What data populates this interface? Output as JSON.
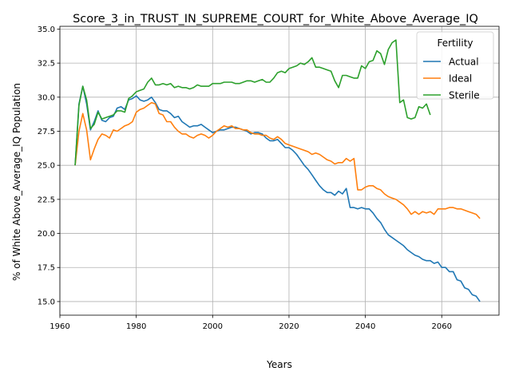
{
  "chart_data": {
    "type": "line",
    "title": "Score_3_in_TRUST_IN_SUPREME_COURT_for_White_Above_Average_IQ",
    "xlabel": "Years",
    "ylabel": "% of White Above_Average_IQ Population",
    "xlim": [
      1960,
      2075
    ],
    "ylim": [
      14.0,
      35.2
    ],
    "xticks": [
      1960,
      1980,
      2000,
      2020,
      2040,
      2060
    ],
    "yticks": [
      15.0,
      17.5,
      20.0,
      22.5,
      25.0,
      27.5,
      30.0,
      32.5,
      35.0
    ],
    "xtick_labels": [
      "1960",
      "1980",
      "2000",
      "2020",
      "2040",
      "2060"
    ],
    "ytick_labels": [
      "15.0",
      "17.5",
      "20.0",
      "22.5",
      "25.0",
      "27.5",
      "30.0",
      "32.5",
      "35.0"
    ],
    "grid": true,
    "legend": {
      "title": "Fertility",
      "placement": "top-right"
    },
    "series": [
      {
        "name": "Actual",
        "color": "#1f77b4",
        "points": [
          [
            1964,
            25.0
          ],
          [
            1965,
            29.5
          ],
          [
            1966,
            30.8
          ],
          [
            1967,
            29.5
          ],
          [
            1968,
            27.6
          ],
          [
            1969,
            28.2
          ],
          [
            1970,
            29.0
          ],
          [
            1971,
            28.3
          ],
          [
            1972,
            28.2
          ],
          [
            1973,
            28.5
          ],
          [
            1974,
            28.6
          ],
          [
            1975,
            29.2
          ],
          [
            1976,
            29.3
          ],
          [
            1977,
            29.1
          ],
          [
            1978,
            29.8
          ],
          [
            1979,
            29.9
          ],
          [
            1980,
            30.1
          ],
          [
            1981,
            29.8
          ],
          [
            1982,
            29.7
          ],
          [
            1983,
            29.8
          ],
          [
            1984,
            30.0
          ],
          [
            1985,
            29.6
          ],
          [
            1986,
            29.1
          ],
          [
            1987,
            29.0
          ],
          [
            1988,
            29.0
          ],
          [
            1989,
            28.8
          ],
          [
            1990,
            28.5
          ],
          [
            1991,
            28.6
          ],
          [
            1992,
            28.2
          ],
          [
            1993,
            28.0
          ],
          [
            1994,
            27.8
          ],
          [
            1995,
            27.9
          ],
          [
            1996,
            27.9
          ],
          [
            1997,
            28.0
          ],
          [
            1998,
            27.8
          ],
          [
            1999,
            27.6
          ],
          [
            2000,
            27.4
          ],
          [
            2001,
            27.5
          ],
          [
            2002,
            27.6
          ],
          [
            2003,
            27.6
          ],
          [
            2004,
            27.7
          ],
          [
            2005,
            27.8
          ],
          [
            2006,
            27.8
          ],
          [
            2007,
            27.7
          ],
          [
            2008,
            27.6
          ],
          [
            2009,
            27.5
          ],
          [
            2010,
            27.3
          ],
          [
            2011,
            27.4
          ],
          [
            2012,
            27.4
          ],
          [
            2013,
            27.3
          ],
          [
            2014,
            27.0
          ],
          [
            2015,
            26.8
          ],
          [
            2016,
            26.8
          ],
          [
            2017,
            26.9
          ],
          [
            2018,
            26.6
          ],
          [
            2019,
            26.3
          ],
          [
            2020,
            26.3
          ],
          [
            2021,
            26.1
          ],
          [
            2022,
            25.8
          ],
          [
            2023,
            25.4
          ],
          [
            2024,
            25.0
          ],
          [
            2025,
            24.7
          ],
          [
            2026,
            24.3
          ],
          [
            2027,
            23.9
          ],
          [
            2028,
            23.5
          ],
          [
            2029,
            23.2
          ],
          [
            2030,
            23.0
          ],
          [
            2031,
            23.0
          ],
          [
            2032,
            22.8
          ],
          [
            2033,
            23.1
          ],
          [
            2034,
            22.9
          ],
          [
            2035,
            23.3
          ],
          [
            2036,
            21.9
          ],
          [
            2037,
            21.9
          ],
          [
            2038,
            21.8
          ],
          [
            2039,
            21.9
          ],
          [
            2040,
            21.8
          ],
          [
            2041,
            21.8
          ],
          [
            2042,
            21.5
          ],
          [
            2043,
            21.1
          ],
          [
            2044,
            20.8
          ],
          [
            2045,
            20.3
          ],
          [
            2046,
            19.9
          ],
          [
            2047,
            19.7
          ],
          [
            2048,
            19.5
          ],
          [
            2049,
            19.3
          ],
          [
            2050,
            19.1
          ],
          [
            2051,
            18.8
          ],
          [
            2052,
            18.6
          ],
          [
            2053,
            18.4
          ],
          [
            2054,
            18.3
          ],
          [
            2055,
            18.1
          ],
          [
            2056,
            18.0
          ],
          [
            2057,
            18.0
          ],
          [
            2058,
            17.8
          ],
          [
            2059,
            17.9
          ],
          [
            2060,
            17.5
          ],
          [
            2061,
            17.5
          ],
          [
            2062,
            17.2
          ],
          [
            2063,
            17.2
          ],
          [
            2064,
            16.6
          ],
          [
            2065,
            16.5
          ],
          [
            2066,
            16.0
          ],
          [
            2067,
            15.9
          ],
          [
            2068,
            15.5
          ],
          [
            2069,
            15.4
          ],
          [
            2070,
            15.0
          ]
        ]
      },
      {
        "name": "Ideal",
        "color": "#ff7f0e",
        "points": [
          [
            1964,
            25.0
          ],
          [
            1965,
            27.5
          ],
          [
            1966,
            28.8
          ],
          [
            1967,
            27.6
          ],
          [
            1968,
            25.4
          ],
          [
            1969,
            26.2
          ],
          [
            1970,
            26.9
          ],
          [
            1971,
            27.3
          ],
          [
            1972,
            27.2
          ],
          [
            1973,
            27.0
          ],
          [
            1974,
            27.6
          ],
          [
            1975,
            27.5
          ],
          [
            1976,
            27.7
          ],
          [
            1977,
            27.9
          ],
          [
            1978,
            28.0
          ],
          [
            1979,
            28.2
          ],
          [
            1980,
            28.9
          ],
          [
            1981,
            29.1
          ],
          [
            1982,
            29.2
          ],
          [
            1983,
            29.4
          ],
          [
            1984,
            29.6
          ],
          [
            1985,
            29.5
          ],
          [
            1986,
            28.8
          ],
          [
            1987,
            28.7
          ],
          [
            1988,
            28.2
          ],
          [
            1989,
            28.2
          ],
          [
            1990,
            27.8
          ],
          [
            1991,
            27.5
          ],
          [
            1992,
            27.3
          ],
          [
            1993,
            27.3
          ],
          [
            1994,
            27.1
          ],
          [
            1995,
            27.0
          ],
          [
            1996,
            27.2
          ],
          [
            1997,
            27.3
          ],
          [
            1998,
            27.2
          ],
          [
            1999,
            27.0
          ],
          [
            2000,
            27.2
          ],
          [
            2001,
            27.5
          ],
          [
            2002,
            27.7
          ],
          [
            2003,
            27.9
          ],
          [
            2004,
            27.8
          ],
          [
            2005,
            27.9
          ],
          [
            2006,
            27.7
          ],
          [
            2007,
            27.7
          ],
          [
            2008,
            27.6
          ],
          [
            2009,
            27.6
          ],
          [
            2010,
            27.4
          ],
          [
            2011,
            27.3
          ],
          [
            2012,
            27.3
          ],
          [
            2013,
            27.2
          ],
          [
            2014,
            27.2
          ],
          [
            2015,
            27.0
          ],
          [
            2016,
            26.9
          ],
          [
            2017,
            27.1
          ],
          [
            2018,
            26.9
          ],
          [
            2019,
            26.6
          ],
          [
            2020,
            26.5
          ],
          [
            2021,
            26.4
          ],
          [
            2022,
            26.3
          ],
          [
            2023,
            26.2
          ],
          [
            2024,
            26.1
          ],
          [
            2025,
            26.0
          ],
          [
            2026,
            25.8
          ],
          [
            2027,
            25.9
          ],
          [
            2028,
            25.8
          ],
          [
            2029,
            25.6
          ],
          [
            2030,
            25.4
          ],
          [
            2031,
            25.3
          ],
          [
            2032,
            25.1
          ],
          [
            2033,
            25.2
          ],
          [
            2034,
            25.2
          ],
          [
            2035,
            25.5
          ],
          [
            2036,
            25.3
          ],
          [
            2037,
            25.5
          ],
          [
            2038,
            23.2
          ],
          [
            2039,
            23.2
          ],
          [
            2040,
            23.4
          ],
          [
            2041,
            23.5
          ],
          [
            2042,
            23.5
          ],
          [
            2043,
            23.3
          ],
          [
            2044,
            23.2
          ],
          [
            2045,
            22.9
          ],
          [
            2046,
            22.7
          ],
          [
            2047,
            22.6
          ],
          [
            2048,
            22.5
          ],
          [
            2049,
            22.3
          ],
          [
            2050,
            22.1
          ],
          [
            2051,
            21.8
          ],
          [
            2052,
            21.4
          ],
          [
            2053,
            21.6
          ],
          [
            2054,
            21.4
          ],
          [
            2055,
            21.6
          ],
          [
            2056,
            21.5
          ],
          [
            2057,
            21.6
          ],
          [
            2058,
            21.4
          ],
          [
            2059,
            21.8
          ],
          [
            2060,
            21.8
          ],
          [
            2061,
            21.8
          ],
          [
            2062,
            21.9
          ],
          [
            2063,
            21.9
          ],
          [
            2064,
            21.8
          ],
          [
            2065,
            21.8
          ],
          [
            2066,
            21.7
          ],
          [
            2067,
            21.6
          ],
          [
            2068,
            21.5
          ],
          [
            2069,
            21.4
          ],
          [
            2070,
            21.1
          ]
        ]
      },
      {
        "name": "Sterile",
        "color": "#2ca02c",
        "points": [
          [
            1964,
            25.0
          ],
          [
            1965,
            29.4
          ],
          [
            1966,
            30.8
          ],
          [
            1967,
            29.8
          ],
          [
            1968,
            27.7
          ],
          [
            1969,
            28.0
          ],
          [
            1970,
            28.9
          ],
          [
            1971,
            28.4
          ],
          [
            1972,
            28.5
          ],
          [
            1973,
            28.6
          ],
          [
            1974,
            28.7
          ],
          [
            1975,
            29.0
          ],
          [
            1976,
            29.0
          ],
          [
            1977,
            28.9
          ],
          [
            1978,
            29.9
          ],
          [
            1979,
            30.1
          ],
          [
            1980,
            30.4
          ],
          [
            1981,
            30.5
          ],
          [
            1982,
            30.6
          ],
          [
            1983,
            31.1
          ],
          [
            1984,
            31.4
          ],
          [
            1985,
            30.9
          ],
          [
            1986,
            30.9
          ],
          [
            1987,
            31.0
          ],
          [
            1988,
            30.9
          ],
          [
            1989,
            31.0
          ],
          [
            1990,
            30.7
          ],
          [
            1991,
            30.8
          ],
          [
            1992,
            30.7
          ],
          [
            1993,
            30.7
          ],
          [
            1994,
            30.6
          ],
          [
            1995,
            30.7
          ],
          [
            1996,
            30.9
          ],
          [
            1997,
            30.8
          ],
          [
            1998,
            30.8
          ],
          [
            1999,
            30.8
          ],
          [
            2000,
            31.0
          ],
          [
            2001,
            31.0
          ],
          [
            2002,
            31.0
          ],
          [
            2003,
            31.1
          ],
          [
            2004,
            31.1
          ],
          [
            2005,
            31.1
          ],
          [
            2006,
            31.0
          ],
          [
            2007,
            31.0
          ],
          [
            2008,
            31.1
          ],
          [
            2009,
            31.2
          ],
          [
            2010,
            31.2
          ],
          [
            2011,
            31.1
          ],
          [
            2012,
            31.2
          ],
          [
            2013,
            31.3
          ],
          [
            2014,
            31.1
          ],
          [
            2015,
            31.1
          ],
          [
            2016,
            31.4
          ],
          [
            2017,
            31.8
          ],
          [
            2018,
            31.9
          ],
          [
            2019,
            31.8
          ],
          [
            2020,
            32.1
          ],
          [
            2021,
            32.2
          ],
          [
            2022,
            32.3
          ],
          [
            2023,
            32.5
          ],
          [
            2024,
            32.4
          ],
          [
            2025,
            32.6
          ],
          [
            2026,
            32.9
          ],
          [
            2027,
            32.2
          ],
          [
            2028,
            32.2
          ],
          [
            2029,
            32.1
          ],
          [
            2030,
            32.0
          ],
          [
            2031,
            31.9
          ],
          [
            2032,
            31.2
          ],
          [
            2033,
            30.7
          ],
          [
            2034,
            31.6
          ],
          [
            2035,
            31.6
          ],
          [
            2036,
            31.5
          ],
          [
            2037,
            31.4
          ],
          [
            2038,
            31.4
          ],
          [
            2039,
            32.3
          ],
          [
            2040,
            32.1
          ],
          [
            2041,
            32.6
          ],
          [
            2042,
            32.7
          ],
          [
            2043,
            33.4
          ],
          [
            2044,
            33.2
          ],
          [
            2045,
            32.4
          ],
          [
            2046,
            33.5
          ],
          [
            2047,
            34.0
          ],
          [
            2048,
            34.2
          ],
          [
            2049,
            29.6
          ],
          [
            2050,
            29.8
          ],
          [
            2051,
            28.5
          ],
          [
            2052,
            28.4
          ],
          [
            2053,
            28.5
          ],
          [
            2054,
            29.3
          ],
          [
            2055,
            29.2
          ],
          [
            2056,
            29.5
          ],
          [
            2057,
            28.7
          ]
        ]
      }
    ]
  }
}
